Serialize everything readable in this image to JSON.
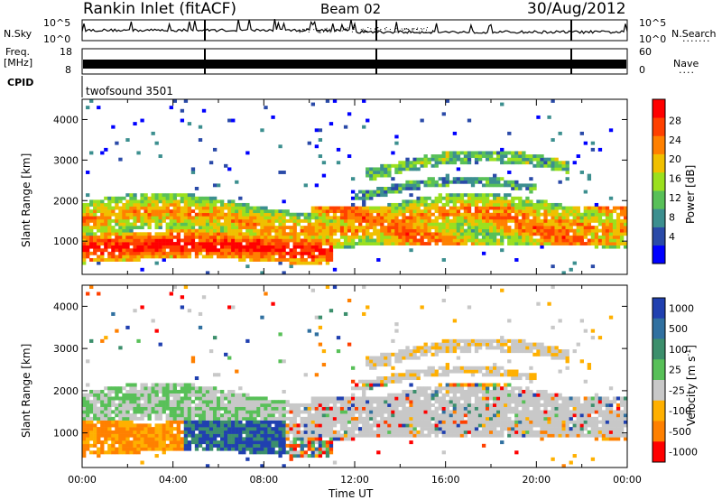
{
  "header": {
    "station": "Rankin Inlet (fitACF)",
    "beam": "Beam 02",
    "date": "30/Aug/2012"
  },
  "nsky_panel": {
    "left_label": "N.Sky",
    "right_label": "N.Search",
    "left_ticks": [
      "10^5",
      "10^0"
    ],
    "right_ticks": [
      "10^5",
      "10^0"
    ]
  },
  "freq_panel": {
    "left_label_1": "Freq.",
    "left_label_2": "[MHz]",
    "left_ticks": [
      "18",
      "8"
    ],
    "right_label": "Nave",
    "right_ticks": [
      "60",
      "0"
    ]
  },
  "cpid_panel": {
    "label": "CPID",
    "program": "twofsound 3501"
  },
  "colors": {
    "power_scale": [
      "#0000ff",
      "#2a4aa8",
      "#3c8f8f",
      "#58c058",
      "#9be01e",
      "#f0c000",
      "#ff8000",
      "#ff4000",
      "#ff0000"
    ],
    "velocity_scale": [
      "#2040b0",
      "#3070a0",
      "#3c8f6c",
      "#58c058",
      "#c8c8c8",
      "#c8c8c8",
      "#ffb000",
      "#ff8000",
      "#ff4000",
      "#ff0000"
    ]
  },
  "chart_data": [
    {
      "type": "heatmap",
      "title": "Power",
      "ylabel": "Slant Range [km]",
      "ylim": [
        180,
        4500
      ],
      "xlim": [
        "00:00",
        "24:00"
      ],
      "yticks": [
        1000,
        2000,
        3000,
        4000
      ],
      "colorbar": {
        "label": "Power [dB]",
        "ticks": [
          "28",
          "24",
          "20",
          "16",
          "12",
          "8",
          "4"
        ]
      },
      "bands": [
        {
          "x0": 0,
          "x1": 24,
          "y0": 400,
          "y1": 2200,
          "level": "mixed"
        }
      ]
    },
    {
      "type": "heatmap",
      "title": "Velocity",
      "xlabel": "Time UT",
      "ylabel": "Slant Range [km]",
      "ylim": [
        180,
        4500
      ],
      "xlim": [
        "00:00",
        "24:00"
      ],
      "yticks": [
        1000,
        2000,
        3000,
        4000
      ],
      "xticks": [
        "00:00",
        "04:00",
        "08:00",
        "12:00",
        "16:00",
        "20:00",
        "00:00"
      ],
      "colorbar": {
        "label": "Velocity [m s^-1]",
        "ticks": [
          "1000",
          "500",
          "100",
          "25",
          "-25",
          "-100",
          "-500",
          "-1000"
        ]
      }
    }
  ]
}
